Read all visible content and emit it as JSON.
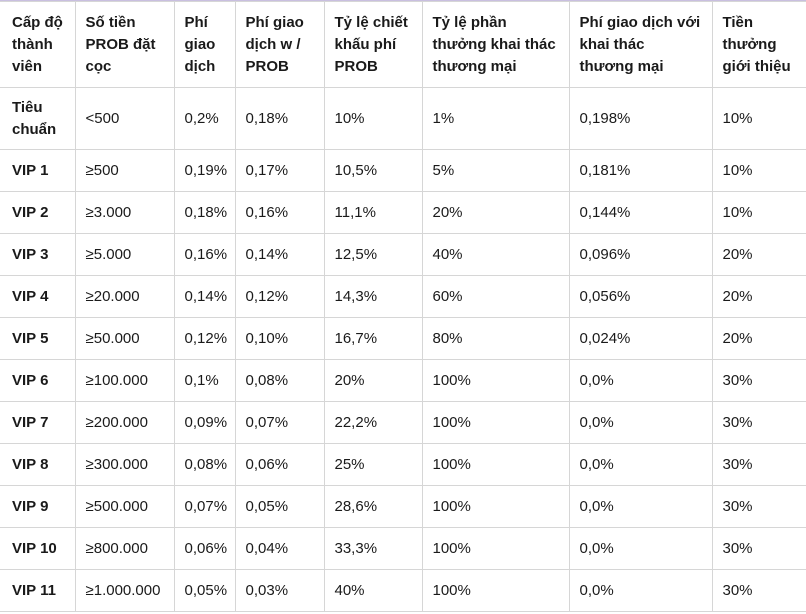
{
  "headers": [
    "Cấp độ thành viên",
    "Số tiền PROB đặt cọc",
    "Phí giao dịch",
    "Phí giao dịch w / PROB",
    "Tỷ lệ chiết khấu phí PROB",
    "Tỷ lệ phần thưởng khai thác thương mại",
    "Phí giao dịch với khai thác thương mại",
    "Tiền thưởng giới thiệu"
  ],
  "rows": [
    [
      "Tiêu chuẩn",
      "<500",
      "0,2%",
      "0,18%",
      "10%",
      "1%",
      "0,198%",
      "10%"
    ],
    [
      "VIP 1",
      "≥500",
      "0,19%",
      "0,17%",
      "10,5%",
      "5%",
      "0,181%",
      "10%"
    ],
    [
      "VIP 2",
      "≥3.000",
      "0,18%",
      "0,16%",
      "11,1%",
      "20%",
      "0,144%",
      "10%"
    ],
    [
      "VIP 3",
      "≥5.000",
      "0,16%",
      "0,14%",
      "12,5%",
      "40%",
      "0,096%",
      "20%"
    ],
    [
      "VIP 4",
      "≥20.000",
      "0,14%",
      "0,12%",
      "14,3%",
      "60%",
      "0,056%",
      "20%"
    ],
    [
      "VIP 5",
      "≥50.000",
      "0,12%",
      "0,10%",
      "16,7%",
      "80%",
      "0,024%",
      "20%"
    ],
    [
      "VIP 6",
      "≥100.000",
      "0,1%",
      "0,08%",
      "20%",
      "100%",
      "0,0%",
      "30%"
    ],
    [
      "VIP 7",
      "≥200.000",
      "0,09%",
      "0,07%",
      "22,2%",
      "100%",
      "0,0%",
      "30%"
    ],
    [
      "VIP 8",
      "≥300.000",
      "0,08%",
      "0,06%",
      "25%",
      "100%",
      "0,0%",
      "30%"
    ],
    [
      "VIP 9",
      "≥500.000",
      "0,07%",
      "0,05%",
      "28,6%",
      "100%",
      "0,0%",
      "30%"
    ],
    [
      "VIP 10",
      "≥800.000",
      "0,06%",
      "0,04%",
      "33,3%",
      "100%",
      "0,0%",
      "30%"
    ],
    [
      "VIP 11",
      "≥1.000.000",
      "0,05%",
      "0,03%",
      "40%",
      "100%",
      "0,0%",
      "30%"
    ]
  ]
}
